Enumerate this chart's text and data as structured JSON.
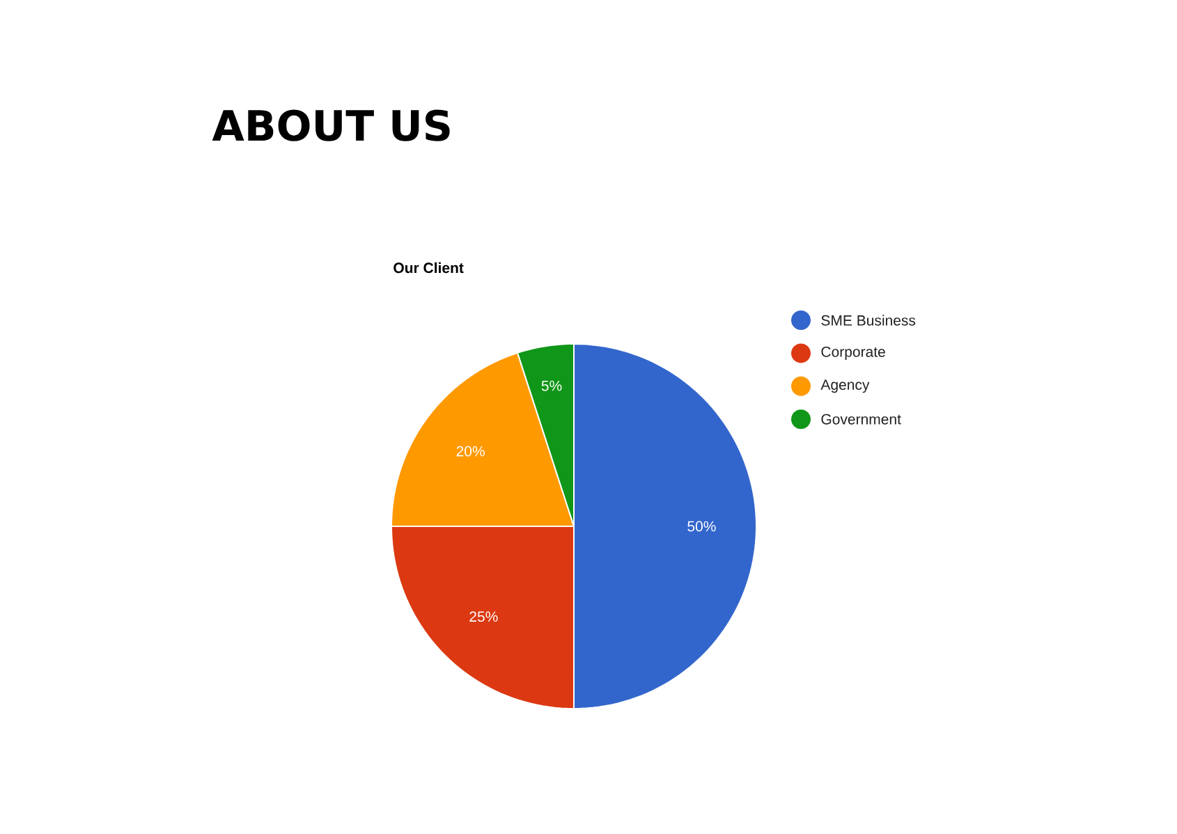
{
  "chart_data": {
    "type": "pie",
    "title": "ABOUT US",
    "subtitle": "Our Client",
    "categories": [
      "SME Business",
      "Corporate",
      "Agency",
      "Government"
    ],
    "values": [
      50,
      25,
      20,
      5
    ],
    "value_labels": [
      "50%",
      "25%",
      "20%",
      "5%"
    ],
    "colors": [
      "#3366cc",
      "#dc3912",
      "#ff9900",
      "#109618"
    ],
    "legend": "right"
  }
}
